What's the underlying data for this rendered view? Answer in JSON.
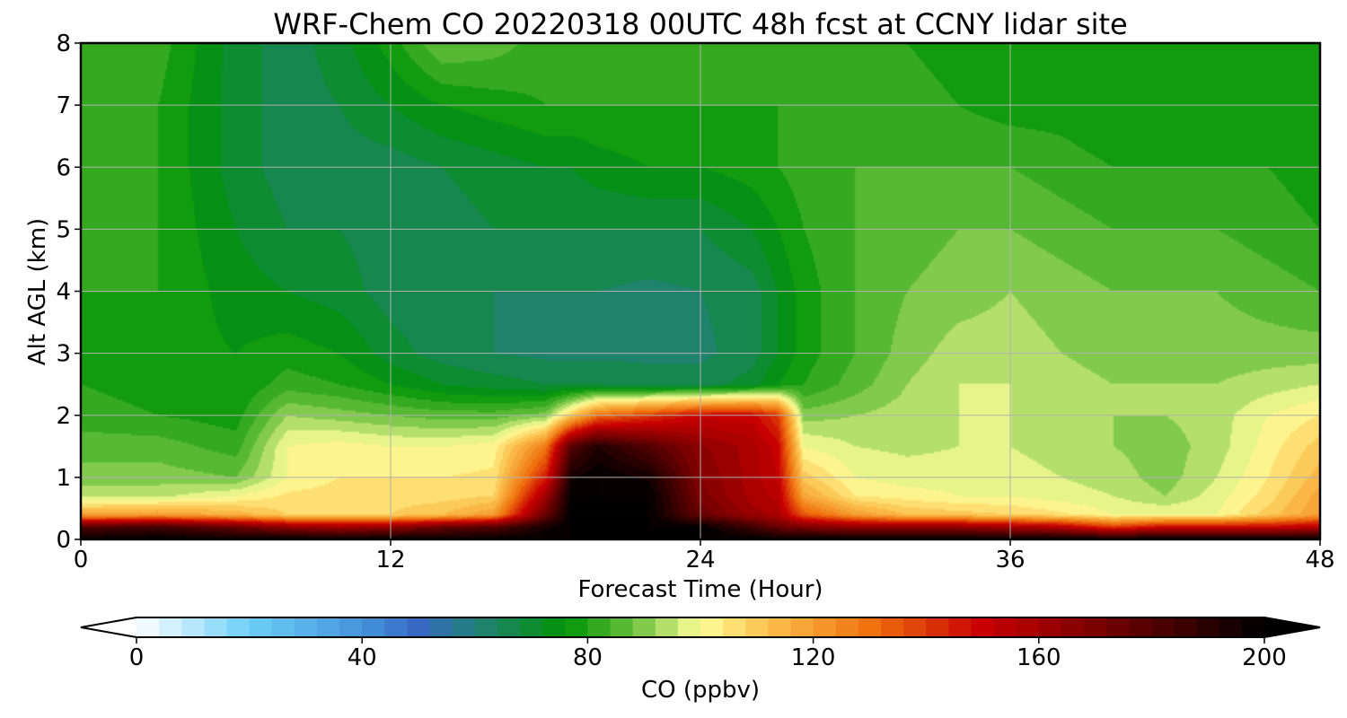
{
  "chart_data": {
    "type": "heatmap",
    "title": "WRF-Chem CO  20220318 00UTC 48h fcst at CCNY lidar site",
    "xlabel": "Forecast Time (Hour)",
    "ylabel": "Alt AGL (km)",
    "xlim": [
      0,
      48
    ],
    "ylim": [
      0,
      8
    ],
    "xticks": [
      "0",
      "12",
      "24",
      "36",
      "48"
    ],
    "yticks": [
      "0",
      "1",
      "2",
      "3",
      "4",
      "5",
      "6",
      "7",
      "8"
    ],
    "grid": true,
    "colorbar": {
      "label": "CO  (ppbv)",
      "range": [
        0,
        200
      ],
      "step": 4,
      "extend": "both",
      "ticks": [
        "0",
        "40",
        "80",
        "120",
        "160",
        "200"
      ],
      "stops": [
        {
          "v": 0,
          "c": "#ffffff"
        },
        {
          "v": 20,
          "c": "#6ccff6"
        },
        {
          "v": 40,
          "c": "#4593dc"
        },
        {
          "v": 50,
          "c": "#3769c3"
        },
        {
          "v": 60,
          "c": "#227f7b"
        },
        {
          "v": 76,
          "c": "#019406"
        },
        {
          "v": 88,
          "c": "#68bf3c"
        },
        {
          "v": 100,
          "c": "#fffe9a"
        },
        {
          "v": 112,
          "c": "#fbbf4c"
        },
        {
          "v": 130,
          "c": "#f0730f"
        },
        {
          "v": 150,
          "c": "#c80000"
        },
        {
          "v": 170,
          "c": "#7c0000"
        },
        {
          "v": 200,
          "c": "#000000"
        }
      ]
    },
    "field": {
      "x": [
        0,
        3,
        6,
        8,
        10,
        12,
        14,
        16,
        18,
        19,
        20,
        22,
        24,
        26,
        27,
        28,
        30,
        32,
        34,
        36,
        38,
        40,
        42,
        44,
        46,
        48
      ],
      "y": [
        0,
        0.2,
        0.4,
        0.7,
        1,
        1.5,
        2,
        2.5,
        3,
        4,
        5,
        6,
        7,
        8
      ],
      "values": [
        [
          200,
          200,
          200,
          200,
          200,
          200,
          200,
          200,
          200,
          200,
          200,
          200,
          200,
          200,
          200,
          200,
          200,
          200,
          200,
          200,
          200,
          200,
          200,
          200,
          200,
          200
        ],
        [
          180,
          185,
          175,
          165,
          160,
          165,
          175,
          180,
          195,
          200,
          200,
          200,
          200,
          185,
          175,
          170,
          165,
          165,
          165,
          160,
          155,
          140,
          150,
          150,
          150,
          155
        ],
        [
          118,
          120,
          115,
          108,
          108,
          108,
          112,
          120,
          175,
          200,
          200,
          200,
          175,
          162,
          158,
          135,
          120,
          112,
          110,
          108,
          105,
          100,
          100,
          100,
          110,
          120
        ],
        [
          95,
          95,
          100,
          105,
          106,
          106,
          106,
          108,
          160,
          200,
          200,
          200,
          170,
          158,
          155,
          118,
          104,
          102,
          100,
          100,
          98,
          96,
          92,
          98,
          106,
          118
        ],
        [
          90,
          90,
          88,
          100,
          104,
          104,
          104,
          105,
          145,
          195,
          200,
          195,
          168,
          158,
          152,
          110,
          100,
          98,
          98,
          98,
          96,
          94,
          90,
          96,
          104,
          114
        ],
        [
          86,
          86,
          82,
          100,
          102,
          100,
          100,
          102,
          128,
          180,
          192,
          180,
          165,
          158,
          150,
          100,
          96,
          95,
          96,
          96,
          94,
          92,
          90,
          94,
          102,
          110
        ],
        [
          82,
          80,
          78,
          92,
          90,
          88,
          86,
          86,
          90,
          110,
          130,
          140,
          150,
          150,
          140,
          90,
          92,
          94,
          96,
          96,
          94,
          92,
          92,
          94,
          100,
          104
        ],
        [
          80,
          78,
          76,
          82,
          80,
          76,
          72,
          70,
          68,
          68,
          68,
          66,
          66,
          70,
          76,
          80,
          86,
          92,
          96,
          96,
          94,
          92,
          92,
          92,
          94,
          96
        ],
        [
          80,
          78,
          76,
          78,
          76,
          70,
          66,
          64,
          63,
          63,
          63,
          63,
          63,
          66,
          72,
          78,
          84,
          90,
          94,
          94,
          92,
          90,
          90,
          90,
          90,
          90
        ],
        [
          80,
          80,
          74,
          72,
          70,
          66,
          64,
          64,
          64,
          64,
          64,
          63,
          64,
          66,
          72,
          78,
          84,
          88,
          90,
          92,
          90,
          88,
          88,
          88,
          86,
          84
        ],
        [
          80,
          80,
          72,
          68,
          68,
          66,
          66,
          68,
          68,
          68,
          68,
          68,
          68,
          72,
          76,
          80,
          84,
          86,
          88,
          88,
          86,
          84,
          84,
          84,
          82,
          80
        ],
        [
          80,
          80,
          70,
          66,
          66,
          66,
          68,
          70,
          72,
          72,
          74,
          76,
          76,
          78,
          80,
          82,
          84,
          84,
          84,
          84,
          82,
          80,
          80,
          80,
          80,
          78
        ],
        [
          80,
          80,
          70,
          66,
          68,
          72,
          76,
          78,
          80,
          80,
          80,
          80,
          80,
          80,
          80,
          80,
          82,
          82,
          80,
          78,
          78,
          76,
          76,
          78,
          80,
          78
        ],
        [
          82,
          82,
          70,
          66,
          70,
          78,
          88,
          86,
          82,
          80,
          80,
          80,
          80,
          80,
          80,
          80,
          80,
          80,
          78,
          76,
          76,
          76,
          76,
          78,
          80,
          78
        ]
      ]
    }
  }
}
